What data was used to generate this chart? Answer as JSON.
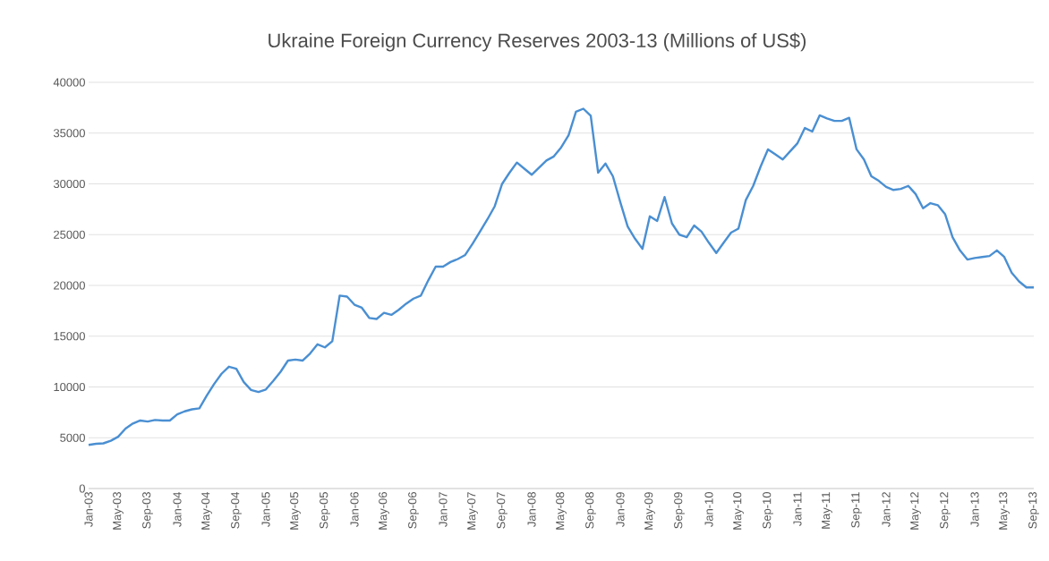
{
  "chart_data": {
    "type": "line",
    "title": "Ukraine Foreign Currency Reserves 2003-13 (Millions of US$)",
    "categories": [
      "Jan-03",
      null,
      null,
      null,
      "May-03",
      null,
      null,
      null,
      "Sep-03",
      null,
      null,
      null,
      "Jan-04",
      null,
      null,
      null,
      "May-04",
      null,
      null,
      null,
      "Sep-04",
      null,
      null,
      null,
      "Jan-05",
      null,
      null,
      null,
      "May-05",
      null,
      null,
      null,
      "Sep-05",
      null,
      null,
      null,
      "Jan-06",
      null,
      null,
      null,
      "May-06",
      null,
      null,
      null,
      "Sep-06",
      null,
      null,
      null,
      "Jan-07",
      null,
      null,
      null,
      "May-07",
      null,
      null,
      null,
      "Sep-07",
      null,
      null,
      null,
      "Jan-08",
      null,
      null,
      null,
      "May-08",
      null,
      null,
      null,
      "Sep-08",
      null,
      null,
      null,
      "Jan-09",
      null,
      null,
      null,
      "May-09",
      null,
      null,
      null,
      "Sep-09",
      null,
      null,
      null,
      "Jan-10",
      null,
      null,
      null,
      "May-10",
      null,
      null,
      null,
      "Sep-10",
      null,
      null,
      null,
      "Jan-11",
      null,
      null,
      null,
      "May-11",
      null,
      null,
      null,
      "Sep-11",
      null,
      null,
      null,
      "Jan-12",
      null,
      null,
      null,
      "May-12",
      null,
      null,
      null,
      "Sep-12",
      null,
      null,
      null,
      "Jan-13",
      null,
      null,
      null,
      "May-13",
      null,
      null,
      null,
      "Sep-13"
    ],
    "values": [
      4300,
      4400,
      4450,
      4700,
      5100,
      5900,
      6400,
      6700,
      6600,
      6750,
      6700,
      6700,
      7300,
      7600,
      7800,
      7900,
      9150,
      10300,
      11300,
      12000,
      11800,
      10500,
      9700,
      9500,
      9750,
      10600,
      11500,
      12600,
      12700,
      12600,
      13300,
      14200,
      13900,
      14500,
      19000,
      18900,
      18100,
      17800,
      16800,
      16700,
      17300,
      17100,
      17600,
      18200,
      18700,
      19000,
      20500,
      21850,
      21850,
      22300,
      22600,
      23000,
      24100,
      25300,
      26500,
      27800,
      30000,
      31100,
      32100,
      31500,
      30900,
      31600,
      32300,
      32700,
      33600,
      34800,
      37100,
      37400,
      36700,
      31100,
      32000,
      30750,
      28200,
      25800,
      24600,
      23600,
      26800,
      26350,
      28700,
      26100,
      25000,
      24750,
      25900,
      25300,
      24200,
      23200,
      24200,
      25200,
      25600,
      28400,
      29800,
      31700,
      33400,
      32900,
      32400,
      33200,
      34000,
      35500,
      35150,
      36750,
      36450,
      36200,
      36200,
      36500,
      33400,
      32400,
      30750,
      30300,
      29700,
      29400,
      29500,
      29800,
      29000,
      27600,
      28100,
      27900,
      27000,
      24750,
      23450,
      22550,
      22700,
      22800,
      22900,
      23450,
      22800,
      21250,
      20400,
      19800,
      19800
    ],
    "color": "#4a8fd2",
    "ylim": [
      0,
      40000
    ],
    "yticks": [
      0,
      5000,
      10000,
      15000,
      20000,
      25000,
      30000,
      35000,
      40000
    ],
    "grid": "y"
  }
}
